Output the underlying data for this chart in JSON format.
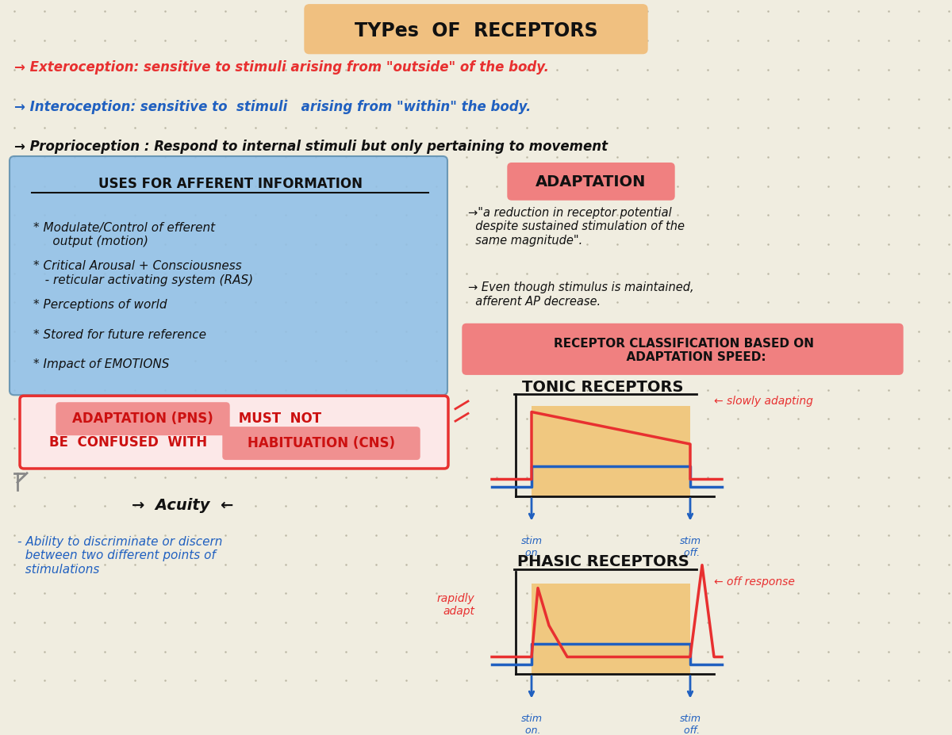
{
  "bg_color": "#f0ede0",
  "dot_color": "#b8b4a0",
  "title_text": "TYPes  OF  RECEPTORS",
  "title_bg": "#f0c080",
  "line1_text": "→ Exteroception: sensitive to stimuli arising from \"outside\" of the body.",
  "line1_color": "#e83030",
  "line2_text": "→ Interoception: sensitive to  stimuli   arising from \"within\" the body.",
  "line2_color": "#2060c0",
  "line3_text": "→ Proprioception : Respond to internal stimuli but only pertaining to movement",
  "line3_color": "#111111",
  "blue_box_color": "#90c0e8",
  "blue_title": "USES FOR AFFERENT INFORMATION",
  "bullets": [
    "* Modulate/Control of efferent\n     output (motion)",
    "* Critical Arousal + Consciousness\n   - reticular activating system (RAS)",
    "* Perceptions of world",
    "* Stored for future reference",
    "* Impact of EMOTIONS"
  ],
  "adaptation_label": "ADAPTATION",
  "adaptation_bg": "#f08080",
  "adapt_text1": "→\"a reduction in receptor potential\n  despite sustained stimulation of the\n  same magnitude\".",
  "adapt_text2": "→ Even though stimulus is maintained,\n  afferent AP decrease.",
  "recept_class_bg": "#f08080",
  "recept_class_text": "RECEPTOR CLASSIFICATION BASED ON\n      ADAPTATION SPEED:",
  "tonic_title": "TONIC RECEPTORS",
  "phasic_title": "PHASIC RECEPTORS",
  "slowly_adapting": "← slowly adapting",
  "off_response": "← off response",
  "rapidly_adapt": "rapidly\nadapt",
  "acuity_text": "→  Acuity  ←",
  "acuity_sub": "- Ability to discriminate or discern\n  between two different points of\n  stimulations",
  "red_box_color": "#e83030",
  "red_box_fill": "#fce8e8",
  "graph_stim_color": "#2060c0",
  "graph_resp_color": "#e83030",
  "graph_fill_color": "#f0c880"
}
